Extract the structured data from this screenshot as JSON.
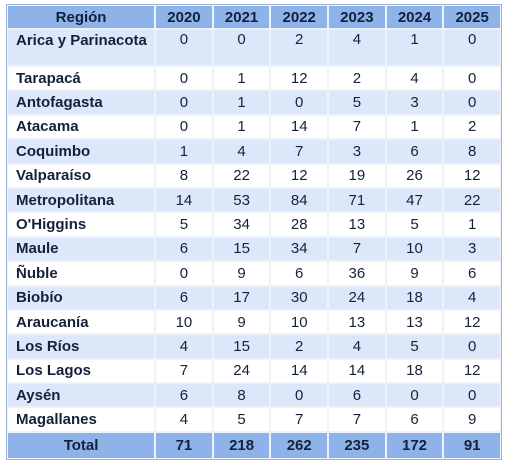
{
  "table": {
    "headers": [
      "Región",
      "2020",
      "2021",
      "2022",
      "2023",
      "2024",
      "2025"
    ],
    "rows": [
      {
        "region": "Arica y Parinacota",
        "values": [
          "0",
          "0",
          "2",
          "4",
          "1",
          "0"
        ]
      },
      {
        "region": "Tarapacá",
        "values": [
          "0",
          "1",
          "12",
          "2",
          "4",
          "0"
        ]
      },
      {
        "region": "Antofagasta",
        "values": [
          "0",
          "1",
          "0",
          "5",
          "3",
          "0"
        ]
      },
      {
        "region": "Atacama",
        "values": [
          "0",
          "1",
          "14",
          "7",
          "1",
          "2"
        ]
      },
      {
        "region": "Coquimbo",
        "values": [
          "1",
          "4",
          "7",
          "3",
          "6",
          "8"
        ]
      },
      {
        "region": "Valparaíso",
        "values": [
          "8",
          "22",
          "12",
          "19",
          "26",
          "12"
        ]
      },
      {
        "region": "Metropolitana",
        "values": [
          "14",
          "53",
          "84",
          "71",
          "47",
          "22"
        ]
      },
      {
        "region": "O'Higgins",
        "values": [
          "5",
          "34",
          "28",
          "13",
          "5",
          "1"
        ]
      },
      {
        "region": "Maule",
        "values": [
          "6",
          "15",
          "34",
          "7",
          "10",
          "3"
        ]
      },
      {
        "region": "Ñuble",
        "values": [
          "0",
          "9",
          "6",
          "36",
          "9",
          "6"
        ]
      },
      {
        "region": "Biobío",
        "values": [
          "6",
          "17",
          "30",
          "24",
          "18",
          "4"
        ]
      },
      {
        "region": "Araucanía",
        "values": [
          "10",
          "9",
          "10",
          "13",
          "13",
          "12"
        ]
      },
      {
        "region": "Los Ríos",
        "values": [
          "4",
          "15",
          "2",
          "4",
          "5",
          "0"
        ]
      },
      {
        "region": "Los Lagos",
        "values": [
          "7",
          "24",
          "14",
          "14",
          "18",
          "12"
        ]
      },
      {
        "region": "Aysén",
        "values": [
          "6",
          "8",
          "0",
          "6",
          "0",
          "0"
        ]
      },
      {
        "region": "Magallanes",
        "values": [
          "4",
          "5",
          "7",
          "7",
          "6",
          "9"
        ]
      }
    ],
    "total": {
      "label": "Total",
      "values": [
        "71",
        "218",
        "262",
        "235",
        "172",
        "91"
      ]
    }
  },
  "colors": {
    "header_bg": "#8eb3e8",
    "row_alt_bg": "#dce8f9",
    "row_bg": "#ffffff"
  }
}
